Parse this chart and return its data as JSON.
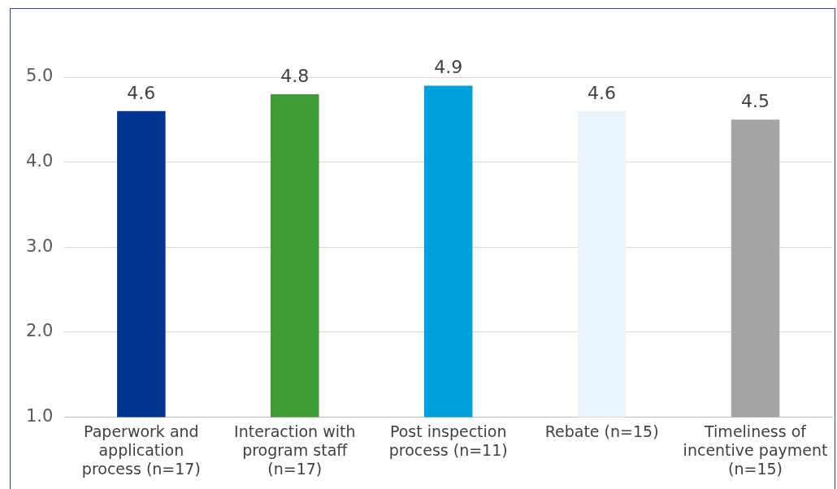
{
  "chart_data": {
    "type": "bar",
    "categories": [
      "Paperwork and application process (n=17)",
      "Interaction with program staff (n=17)",
      "Post inspection process (n=11)",
      "Rebate (n=15)",
      "Timeliness of incentive payment (n=15)"
    ],
    "values": [
      4.6,
      4.8,
      4.9,
      4.6,
      4.5
    ],
    "colors": [
      "#003591",
      "#3f9c35",
      "#00a0dc",
      "#eaf4fc",
      "#a5a5a5"
    ],
    "ylim": [
      1,
      5
    ],
    "yticks": [
      {
        "value": 1,
        "label": "1.0"
      },
      {
        "value": 2,
        "label": "2.0"
      },
      {
        "value": 3,
        "label": "3.0"
      },
      {
        "value": 4,
        "label": "4.0"
      },
      {
        "value": 5,
        "label": "5.0"
      }
    ],
    "grid": "y",
    "data_labels": true,
    "legend": false
  }
}
